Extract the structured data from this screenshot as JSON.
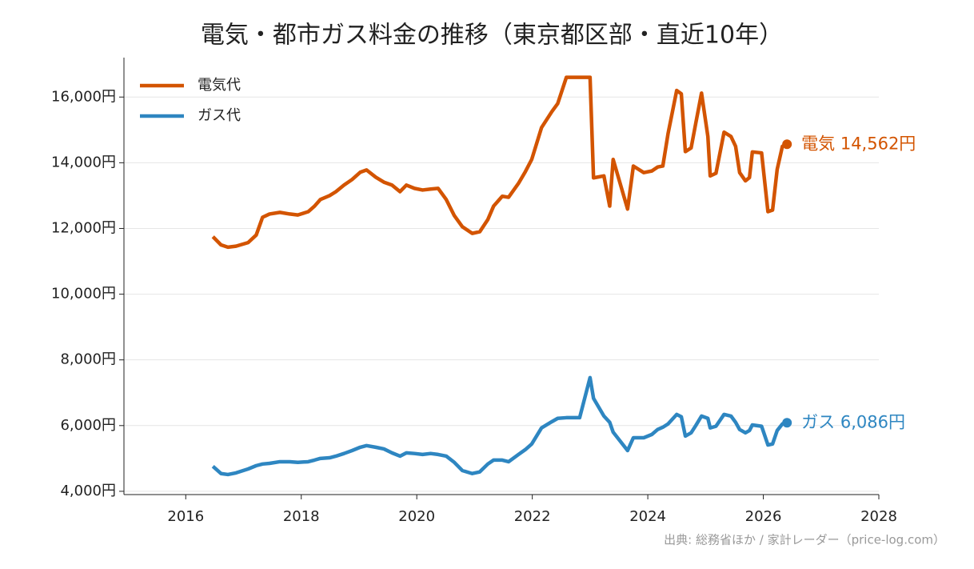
{
  "chart_data": {
    "type": "line",
    "title": "電気・都市ガス料金の推移（東京都区部・直近10年）",
    "source": "出典: 総務省ほか / 家計レーダー（price-log.com）",
    "x": [
      2016.47,
      2016.61,
      2016.73,
      2016.87,
      2017.08,
      2017.22,
      2017.33,
      2017.45,
      2017.63,
      2017.8,
      2017.94,
      2018.12,
      2018.23,
      2018.33,
      2018.49,
      2018.6,
      2018.74,
      2018.88,
      2019.02,
      2019.13,
      2019.29,
      2019.43,
      2019.57,
      2019.71,
      2019.82,
      2019.96,
      2020.1,
      2020.24,
      2020.37,
      2020.51,
      2020.65,
      2020.79,
      2020.96,
      2021.09,
      2021.23,
      2021.33,
      2021.48,
      2021.59,
      2021.76,
      2021.88,
      2021.99,
      2022.16,
      2022.34,
      2022.44,
      2022.59,
      2022.82,
      2023.0,
      2023.06,
      2023.24,
      2023.34,
      2023.4,
      2023.65,
      2023.75,
      2023.93,
      2024.07,
      2024.17,
      2024.26,
      2024.35,
      2024.5,
      2024.58,
      2024.65,
      2024.75,
      2024.83,
      2024.93,
      2025.04,
      2025.08,
      2025.18,
      2025.32,
      2025.44,
      2025.52,
      2025.59,
      2025.69,
      2025.76,
      2025.81,
      2025.97,
      2026.08,
      2026.16,
      2026.24,
      2026.33,
      2026.41
    ],
    "series": [
      {
        "name": "電気代",
        "color": "#d35400",
        "annotation": "電気 14,562円",
        "values": [
          11750,
          11500,
          11430,
          11460,
          11570,
          11800,
          12340,
          12440,
          12490,
          12440,
          12410,
          12510,
          12680,
          12880,
          13000,
          13120,
          13320,
          13490,
          13710,
          13780,
          13560,
          13410,
          13320,
          13120,
          13320,
          13220,
          13170,
          13200,
          13220,
          12880,
          12390,
          12050,
          11850,
          11900,
          12270,
          12680,
          12980,
          12950,
          13370,
          13730,
          14100,
          15070,
          15560,
          15800,
          16600,
          16600,
          16600,
          13540,
          13600,
          12680,
          14100,
          12590,
          13900,
          13700,
          13750,
          13870,
          13900,
          14880,
          16200,
          16100,
          14340,
          14450,
          15200,
          16120,
          14800,
          13600,
          13680,
          14930,
          14800,
          14500,
          13700,
          13450,
          13550,
          14330,
          14300,
          12510,
          12560,
          13800,
          14500,
          14562
        ]
      },
      {
        "name": "ガス代",
        "color": "#2e86c1",
        "annotation": "ガス 6,086円",
        "values": [
          4760,
          4540,
          4510,
          4560,
          4680,
          4780,
          4830,
          4850,
          4900,
          4900,
          4880,
          4900,
          4950,
          5000,
          5020,
          5070,
          5150,
          5240,
          5340,
          5390,
          5340,
          5290,
          5170,
          5070,
          5170,
          5150,
          5120,
          5150,
          5120,
          5070,
          4880,
          4630,
          4540,
          4590,
          4830,
          4950,
          4950,
          4900,
          5120,
          5270,
          5440,
          5930,
          6120,
          6220,
          6240,
          6240,
          7460,
          6830,
          6290,
          6100,
          5800,
          5240,
          5630,
          5630,
          5730,
          5880,
          5950,
          6050,
          6340,
          6270,
          5680,
          5780,
          6000,
          6290,
          6220,
          5930,
          5980,
          6340,
          6290,
          6100,
          5880,
          5780,
          5850,
          6020,
          5980,
          5410,
          5440,
          5850,
          6050,
          6086
        ]
      }
    ],
    "xlim": [
      2014.93,
      2028
    ],
    "xticks": [
      2016,
      2018,
      2020,
      2022,
      2024,
      2026,
      2028
    ],
    "ylim": [
      3900,
      17200
    ],
    "yticks": [
      {
        "value": 4000,
        "label": "4,000円"
      },
      {
        "value": 6000,
        "label": "6,000円"
      },
      {
        "value": 8000,
        "label": "8,000円"
      },
      {
        "value": 10000,
        "label": "10,000円"
      },
      {
        "value": 12000,
        "label": "12,000円"
      },
      {
        "value": 14000,
        "label": "14,000円"
      },
      {
        "value": 16000,
        "label": "16,000円"
      }
    ],
    "grid": true,
    "legend": "upper-left"
  }
}
